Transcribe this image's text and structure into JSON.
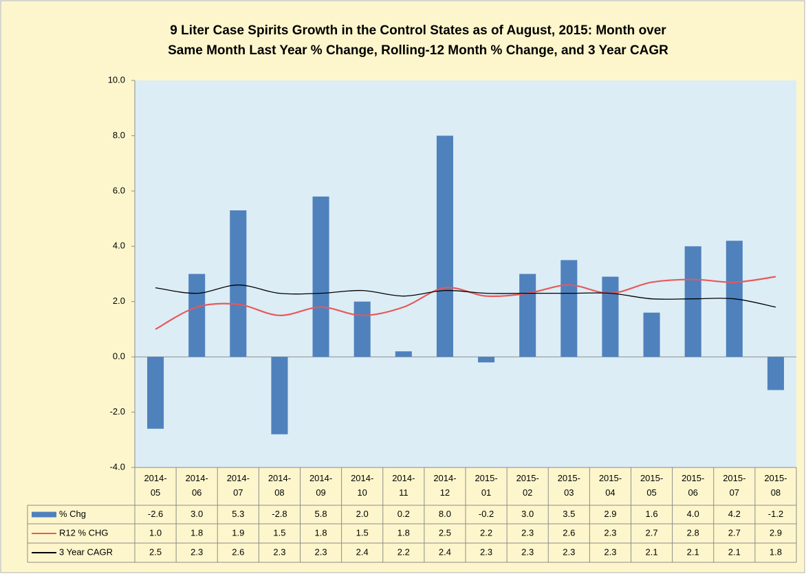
{
  "chart_data": {
    "type": "bar-line",
    "title": [
      "9 Liter Case Spirits Growth in the Control States as of August, 2015:  Month over",
      "Same Month Last Year % Change, Rolling-12 Month % Change, and 3 Year CAGR"
    ],
    "categories": [
      "2014-05",
      "2014-06",
      "2014-07",
      "2014-08",
      "2014-09",
      "2014-10",
      "2014-11",
      "2014-12",
      "2015-01",
      "2015-02",
      "2015-03",
      "2015-04",
      "2015-05",
      "2015-06",
      "2015-07",
      "2015-08"
    ],
    "series": [
      {
        "name": "% Chg",
        "type": "bar",
        "color": "#4f81bd",
        "values": [
          -2.6,
          3.0,
          5.3,
          -2.8,
          5.8,
          2.0,
          0.2,
          8.0,
          -0.2,
          3.0,
          3.5,
          2.9,
          1.6,
          4.0,
          4.2,
          -1.2
        ],
        "value_labels": [
          "-2.6",
          "3.0",
          "5.3",
          "-2.8",
          "5.8",
          "2.0",
          "0.2",
          "8.0",
          "-0.2",
          "3.0",
          "3.5",
          "2.9",
          "1.6",
          "4.0",
          "4.2",
          "-1.2"
        ]
      },
      {
        "name": "R12 % CHG",
        "type": "line",
        "color": "#e8585a",
        "values": [
          1.0,
          1.8,
          1.9,
          1.5,
          1.8,
          1.5,
          1.8,
          2.5,
          2.2,
          2.3,
          2.6,
          2.3,
          2.7,
          2.8,
          2.7,
          2.9
        ],
        "value_labels": [
          "1.0",
          "1.8",
          "1.9",
          "1.5",
          "1.8",
          "1.5",
          "1.8",
          "2.5",
          "2.2",
          "2.3",
          "2.6",
          "2.3",
          "2.7",
          "2.8",
          "2.7",
          "2.9"
        ]
      },
      {
        "name": "3 Year CAGR",
        "type": "line",
        "color": "#000000",
        "values": [
          2.5,
          2.3,
          2.6,
          2.3,
          2.3,
          2.4,
          2.2,
          2.4,
          2.3,
          2.3,
          2.3,
          2.3,
          2.1,
          2.1,
          2.1,
          1.8
        ],
        "value_labels": [
          "2.5",
          "2.3",
          "2.6",
          "2.3",
          "2.3",
          "2.4",
          "2.2",
          "2.4",
          "2.3",
          "2.3",
          "2.3",
          "2.3",
          "2.1",
          "2.1",
          "2.1",
          "1.8"
        ]
      }
    ],
    "ylim": [
      -4,
      10
    ],
    "yticks": [
      {
        "value": -4,
        "label": "-4.0"
      },
      {
        "value": -2,
        "label": "-2.0"
      },
      {
        "value": 0,
        "label": "0.0"
      },
      {
        "value": 2,
        "label": "2.0"
      },
      {
        "value": 4,
        "label": "4.0"
      },
      {
        "value": 6,
        "label": "6.0"
      },
      {
        "value": 8,
        "label": "8.0"
      },
      {
        "value": 10,
        "label": "10.0"
      }
    ],
    "grid": false
  }
}
